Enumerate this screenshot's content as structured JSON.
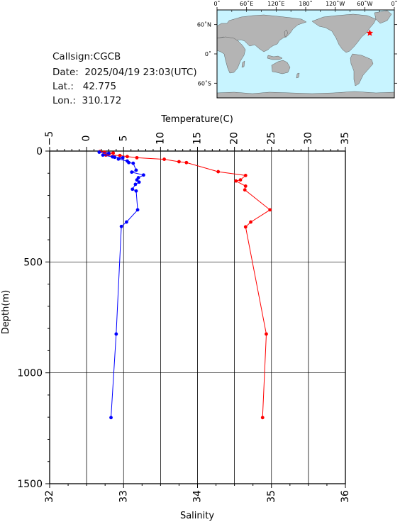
{
  "info": {
    "callsign": "Callsign:CGCB",
    "date": "Date:  2025/04/19 23:03(UTC)",
    "lat": "Lat.:   42.775",
    "lon": "Lon.:  310.172"
  },
  "map": {
    "lon_labels": [
      "0˚",
      "60˚E",
      "120˚E",
      "180˚",
      "120˚W",
      "60˚W",
      "0˚"
    ],
    "lat_labels": [
      "60˚N",
      "0˚",
      "60˚S"
    ],
    "ocean_color": "#c8f4ff",
    "land_color": "#b4b4b4",
    "marker_color": "#ff0000",
    "station_lon": 310.172,
    "station_lat": 42.775
  },
  "chart_data": {
    "type": "line",
    "ylabel": "Depth(m)",
    "ylim": [
      1500,
      0
    ],
    "yticks": [
      "0",
      "500",
      "1000",
      "1500"
    ],
    "temperature_axis": {
      "label": "Temperature(C)",
      "range": [
        -5,
        35
      ],
      "ticks": [
        "−5",
        "0",
        "5",
        "10",
        "15",
        "20",
        "25",
        "30",
        "35"
      ]
    },
    "salinity_axis": {
      "label": "Salinity",
      "range": [
        32,
        36
      ],
      "ticks": [
        "32",
        "33",
        "34",
        "35",
        "36"
      ]
    },
    "grid": true,
    "series": [
      {
        "name": "Temperature",
        "color": "#ff0000",
        "axis": "temperature",
        "points": [
          [
            1.8,
            2
          ],
          [
            2.4,
            5
          ],
          [
            3.6,
            9
          ],
          [
            3.0,
            14
          ],
          [
            2.6,
            18
          ],
          [
            4.5,
            20
          ],
          [
            5.5,
            25
          ],
          [
            6.8,
            30
          ],
          [
            10.5,
            37
          ],
          [
            12.5,
            48
          ],
          [
            13.5,
            52
          ],
          [
            17.8,
            93
          ],
          [
            21.5,
            110
          ],
          [
            20.8,
            130
          ],
          [
            20.2,
            135
          ],
          [
            21.5,
            158
          ],
          [
            21.4,
            175
          ],
          [
            24.8,
            265
          ],
          [
            22.2,
            320
          ],
          [
            21.5,
            342
          ],
          [
            24.3,
            825
          ],
          [
            23.8,
            1202
          ]
        ]
      },
      {
        "name": "Salinity",
        "color": "#0000ff",
        "axis": "salinity",
        "points": [
          [
            32.67,
            5
          ],
          [
            32.8,
            10
          ],
          [
            32.72,
            18
          ],
          [
            32.85,
            26
          ],
          [
            32.88,
            28
          ],
          [
            32.99,
            30
          ],
          [
            32.93,
            36
          ],
          [
            33.05,
            45
          ],
          [
            33.07,
            52
          ],
          [
            33.13,
            55
          ],
          [
            33.17,
            86
          ],
          [
            33.11,
            95
          ],
          [
            33.27,
            108
          ],
          [
            33.2,
            120
          ],
          [
            33.18,
            130
          ],
          [
            33.21,
            140
          ],
          [
            33.16,
            150
          ],
          [
            33.12,
            172
          ],
          [
            33.17,
            180
          ],
          [
            33.19,
            265
          ],
          [
            33.04,
            320
          ],
          [
            32.97,
            340
          ],
          [
            32.9,
            825
          ],
          [
            32.83,
            1202
          ]
        ]
      }
    ]
  }
}
